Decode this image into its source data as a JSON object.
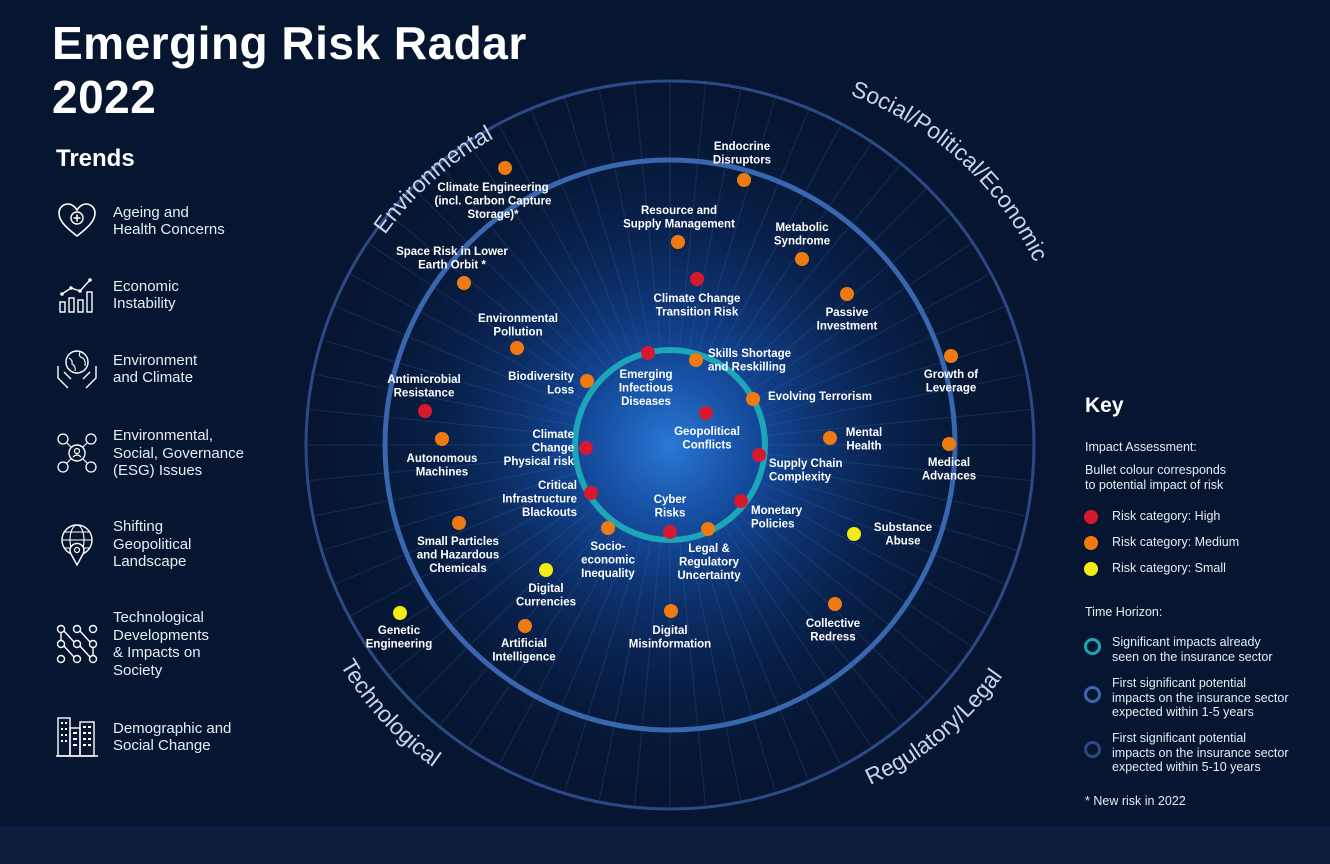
{
  "title": {
    "line1": "Emerging Risk Radar",
    "line2": "2022"
  },
  "trends": {
    "heading": "Trends",
    "items": [
      {
        "label": "Ageing and\nHealth Concerns",
        "icon": "heart-medical-icon"
      },
      {
        "label": "Economic\nInstability",
        "icon": "growth-chart-icon"
      },
      {
        "label": "Environment\nand Climate",
        "icon": "globe-in-hands-icon"
      },
      {
        "label": "Environmental,\nSocial, Governance\n(ESG) Issues",
        "icon": "people-network-icon"
      },
      {
        "label": "Shifting\nGeopolitical\nLandscape",
        "icon": "globe-location-pin-icon"
      },
      {
        "label": "Technological\nDevelopments\n& Impacts on\nSociety",
        "icon": "node-network-icon"
      },
      {
        "label": "Demographic and\nSocial Change",
        "icon": "city-buildings-icon"
      }
    ]
  },
  "sectors": {
    "environmental": "Environmental",
    "social": "Social/Political/Economic",
    "technological": "Technological",
    "regulatory": "Regulatory/Legal"
  },
  "colors": {
    "high": "#d7192f",
    "medium": "#f07a12",
    "small": "#f4ea14",
    "ring_inner": "#1da5b8",
    "ring_middle": "#3a66b0",
    "ring_outer": "#2b4a84"
  },
  "risks": [
    {
      "name": "Climate Engineering\n(incl. Carbon Capture\nStorage)*",
      "impact": "medium"
    },
    {
      "name": "Space Risk in Lower\nEarth Orbit *",
      "impact": "medium"
    },
    {
      "name": "Environmental\nPollution",
      "impact": "medium"
    },
    {
      "name": "Antimicrobial\nResistance",
      "impact": "high"
    },
    {
      "name": "Biodiversity\nLoss",
      "impact": "medium"
    },
    {
      "name": "Autonomous\nMachines",
      "impact": "medium"
    },
    {
      "name": "Climate\nChange\nPhysical risk",
      "impact": "high"
    },
    {
      "name": "Critical\nInfrastructure\nBlackouts",
      "impact": "high"
    },
    {
      "name": "Small Particles\nand Hazardous\nChemicals",
      "impact": "medium"
    },
    {
      "name": "Socio-\neconomic\nInequality",
      "impact": "medium"
    },
    {
      "name": "Digital\nCurrencies",
      "impact": "small"
    },
    {
      "name": "Genetic\nEngineering",
      "impact": "small"
    },
    {
      "name": "Artificial\nIntelligence",
      "impact": "medium"
    },
    {
      "name": "Digital\nMisinformation",
      "impact": "medium"
    },
    {
      "name": "Cyber\nRisks",
      "impact": "high"
    },
    {
      "name": "Legal &\nRegulatory\nUncertainty",
      "impact": "medium"
    },
    {
      "name": "Monetary\nPolicies",
      "impact": "high"
    },
    {
      "name": "Collective\nRedress",
      "impact": "medium"
    },
    {
      "name": "Substance\nAbuse",
      "impact": "small"
    },
    {
      "name": "Medical\nAdvances",
      "impact": "medium"
    },
    {
      "name": "Supply Chain\nComplexity",
      "impact": "high"
    },
    {
      "name": "Mental\nHealth",
      "impact": "medium"
    },
    {
      "name": "Geopolitical\nConflicts",
      "impact": "high"
    },
    {
      "name": "Evolving Terrorism",
      "impact": "medium"
    },
    {
      "name": "Growth of\nLeverage",
      "impact": "medium"
    },
    {
      "name": "Skills Shortage\nand Reskilling",
      "impact": "medium"
    },
    {
      "name": "Emerging\nInfectious\nDiseases",
      "impact": "high"
    },
    {
      "name": "Passive\nInvestment",
      "impact": "medium"
    },
    {
      "name": "Climate Change\nTransition Risk",
      "impact": "high"
    },
    {
      "name": "Resource and\nSupply Management",
      "impact": "medium"
    },
    {
      "name": "Metabolic\nSyndrome",
      "impact": "medium"
    },
    {
      "name": "Endocrine\nDisruptors",
      "impact": "medium"
    }
  ],
  "key": {
    "heading": "Key",
    "impact_title": "Impact Assessment:",
    "impact_desc": "Bullet colour corresponds\nto potential impact of risk",
    "impact_items": [
      {
        "label": "Risk category: High",
        "level": "high"
      },
      {
        "label": "Risk category: Medium",
        "level": "medium"
      },
      {
        "label": "Risk category: Small",
        "level": "small"
      }
    ],
    "time_title": "Time Horizon:",
    "time_items": [
      {
        "label": "Significant impacts already\nseen on the insurance sector",
        "ring": "ring_inner"
      },
      {
        "label": "First significant potential\nimpacts on the insurance sector\nexpected within 1-5 years",
        "ring": "ring_middle"
      },
      {
        "label": "First significant potential\nimpacts on the insurance sector\nexpected within 5-10 years",
        "ring": "ring_outer"
      }
    ],
    "footnote": "* New risk in 2022"
  }
}
